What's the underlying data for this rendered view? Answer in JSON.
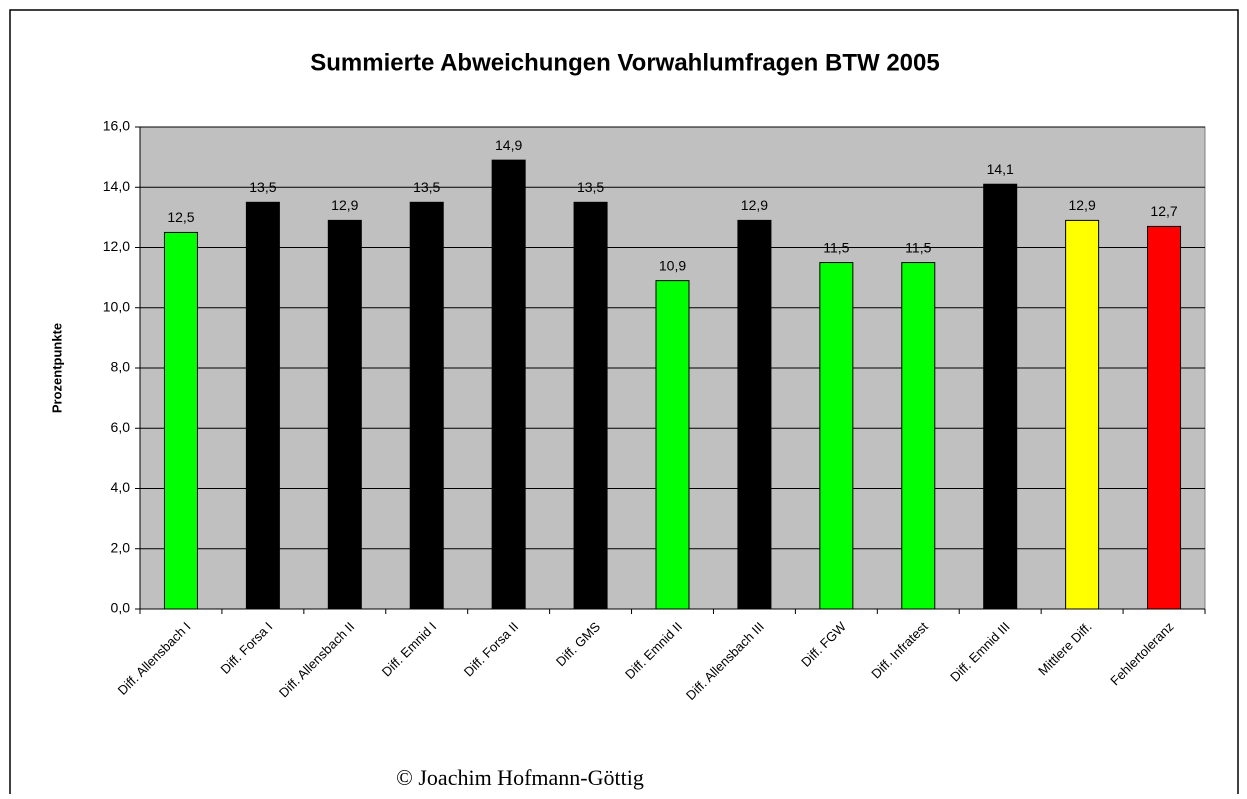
{
  "chart_data": {
    "type": "bar",
    "title": "Summierte Abweichungen Vorwahlumfragen BTW 2005",
    "y_label": "Prozentpunkte",
    "credit": "© Joachim Hofmann-Göttig",
    "categories": [
      "Diff. Allensbach I",
      "Diff. Forsa I",
      "Diff. Allensbach II",
      "Diff. Emnid I",
      "Diff. Forsa II",
      "Diff. GMS",
      "Diff. Emnid II",
      "Diff. Allensbach III",
      "Diff. FGW",
      "Diff. Infratest",
      "Diff. Emnid III",
      "Mittlere Diff.",
      "Fehlertoleranz"
    ],
    "values": [
      12.5,
      13.5,
      12.9,
      13.5,
      14.9,
      13.5,
      10.9,
      12.9,
      11.5,
      11.5,
      14.1,
      12.9,
      12.7
    ],
    "value_labels": [
      "12,5",
      "13,5",
      "12,9",
      "13,5",
      "14,9",
      "13,5",
      "10,9",
      "12,9",
      "11,5",
      "11,5",
      "14,1",
      "12,9",
      "12,7"
    ],
    "colors": [
      "#00ff00",
      "#000000",
      "#000000",
      "#000000",
      "#000000",
      "#000000",
      "#00ff00",
      "#000000",
      "#00ff00",
      "#00ff00",
      "#000000",
      "#ffff00",
      "#ff0000"
    ],
    "ylim": [
      0,
      16
    ],
    "yticks": [
      {
        "value": 0,
        "label": "0,0"
      },
      {
        "value": 2,
        "label": "2,0"
      },
      {
        "value": 4,
        "label": "4,0"
      },
      {
        "value": 6,
        "label": "6,0"
      },
      {
        "value": 8,
        "label": "8,0"
      },
      {
        "value": 10,
        "label": "10,0"
      },
      {
        "value": 12,
        "label": "12,0"
      },
      {
        "value": 14,
        "label": "14,0"
      },
      {
        "value": 16,
        "label": "16,0"
      }
    ],
    "grid": true,
    "plot_background": "#c0c0c0"
  }
}
